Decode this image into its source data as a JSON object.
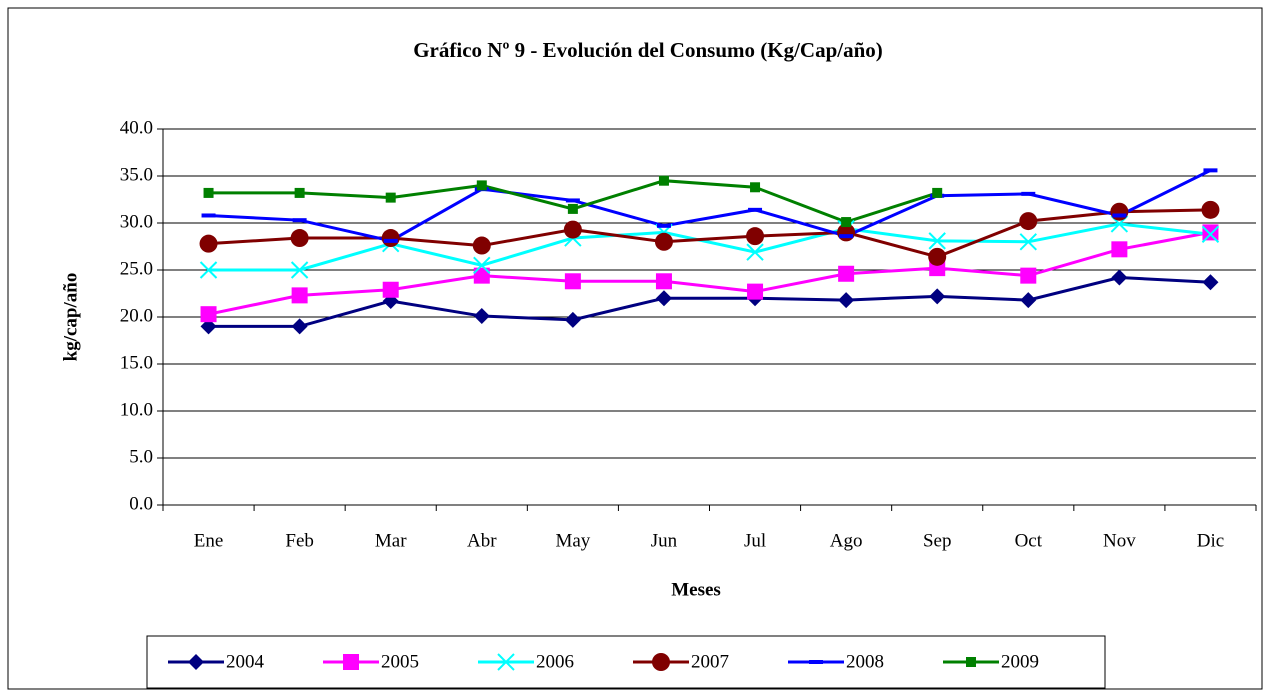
{
  "chart_data": {
    "type": "line",
    "title": "Gráfico Nº 9 - Evolución del Consumo (Kg/Cap/año)",
    "x_label": "Meses",
    "y_label": "kg/cap/año",
    "categories": [
      "Ene",
      "Feb",
      "Mar",
      "Abr",
      "May",
      "Jun",
      "Jul",
      "Ago",
      "Sep",
      "Oct",
      "Nov",
      "Dic"
    ],
    "ylim": [
      0,
      40
    ],
    "yticks": [
      {
        "value": 0,
        "label": "0.0"
      },
      {
        "value": 5,
        "label": "5.0"
      },
      {
        "value": 10,
        "label": "10.0"
      },
      {
        "value": 15,
        "label": "15.0"
      },
      {
        "value": 20,
        "label": "20.0"
      },
      {
        "value": 25,
        "label": "25.0"
      },
      {
        "value": 30,
        "label": "30.0"
      },
      {
        "value": 35,
        "label": "35.0"
      },
      {
        "value": 40,
        "label": "40.0"
      }
    ],
    "grid": true,
    "legend": "bottom",
    "series": [
      {
        "name": "2004",
        "color": "#000080",
        "marker": "diamond",
        "values": [
          19.0,
          19.0,
          21.7,
          20.1,
          19.7,
          22.0,
          22.0,
          21.8,
          22.2,
          21.8,
          24.2,
          23.7
        ]
      },
      {
        "name": "2005",
        "color": "#ff00ff",
        "marker": "square",
        "values": [
          20.3,
          22.3,
          22.9,
          24.4,
          23.8,
          23.8,
          22.7,
          24.6,
          25.2,
          24.4,
          27.2,
          29.0
        ]
      },
      {
        "name": "2006",
        "color": "#00ffff",
        "marker": "x",
        "values": [
          25.0,
          25.0,
          27.8,
          25.5,
          28.4,
          29.0,
          26.9,
          29.4,
          28.1,
          28.0,
          29.9,
          28.8
        ]
      },
      {
        "name": "2007",
        "color": "#800000",
        "marker": "circle",
        "values": [
          27.8,
          28.4,
          28.4,
          27.6,
          29.3,
          28.0,
          28.6,
          29.0,
          26.4,
          30.2,
          31.2,
          31.4
        ]
      },
      {
        "name": "2008",
        "color": "#0000ff",
        "marker": "dash",
        "values": [
          30.8,
          30.3,
          28.1,
          33.6,
          32.4,
          29.7,
          31.4,
          28.6,
          32.9,
          33.1,
          30.8,
          35.6
        ]
      },
      {
        "name": "2009",
        "color": "#008000",
        "marker": "smallsquare",
        "values": [
          33.2,
          33.2,
          32.7,
          34.0,
          31.5,
          34.5,
          33.8,
          30.1,
          33.2,
          null,
          null,
          null
        ]
      }
    ]
  }
}
